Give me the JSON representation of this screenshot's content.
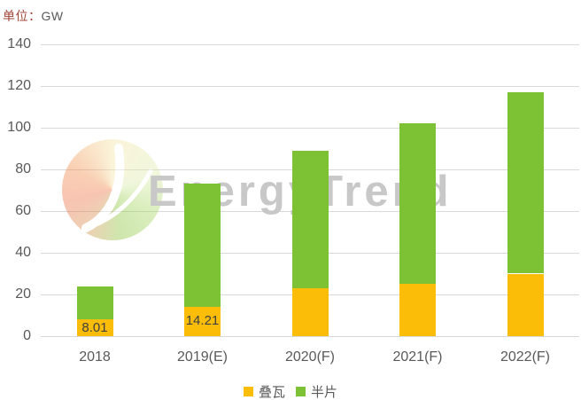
{
  "unit_label": {
    "prefix": "单位：",
    "value": "GW"
  },
  "watermark": {
    "text": "EnergyTrend"
  },
  "chart_data": {
    "type": "bar",
    "stacked": true,
    "title": "",
    "unit": "GW",
    "categories": [
      "2018",
      "2019(E)",
      "2020(F)",
      "2021(F)",
      "2022(F)"
    ],
    "series": [
      {
        "name": "叠瓦",
        "color": "#FBBD08",
        "values": [
          8.01,
          14.21,
          23,
          25,
          30
        ],
        "value_labels": [
          "8.01",
          "14.21",
          "",
          "",
          ""
        ]
      },
      {
        "name": "半片",
        "color": "#7CC234",
        "values": [
          16,
          58.8,
          66,
          77,
          87
        ],
        "value_labels": [
          "",
          "",
          "",
          "",
          ""
        ]
      }
    ],
    "totals": [
      24.01,
      73.01,
      89,
      102,
      117
    ],
    "ylim": [
      0,
      140
    ],
    "ytick_step": 20,
    "yticks": [
      "0",
      "20",
      "40",
      "60",
      "80",
      "100",
      "120",
      "140"
    ],
    "grid": true,
    "gridline_color": "#D9D9D9",
    "axis_label_color": "#595959",
    "value_label_color": "#404040",
    "legend_position": "bottom"
  }
}
